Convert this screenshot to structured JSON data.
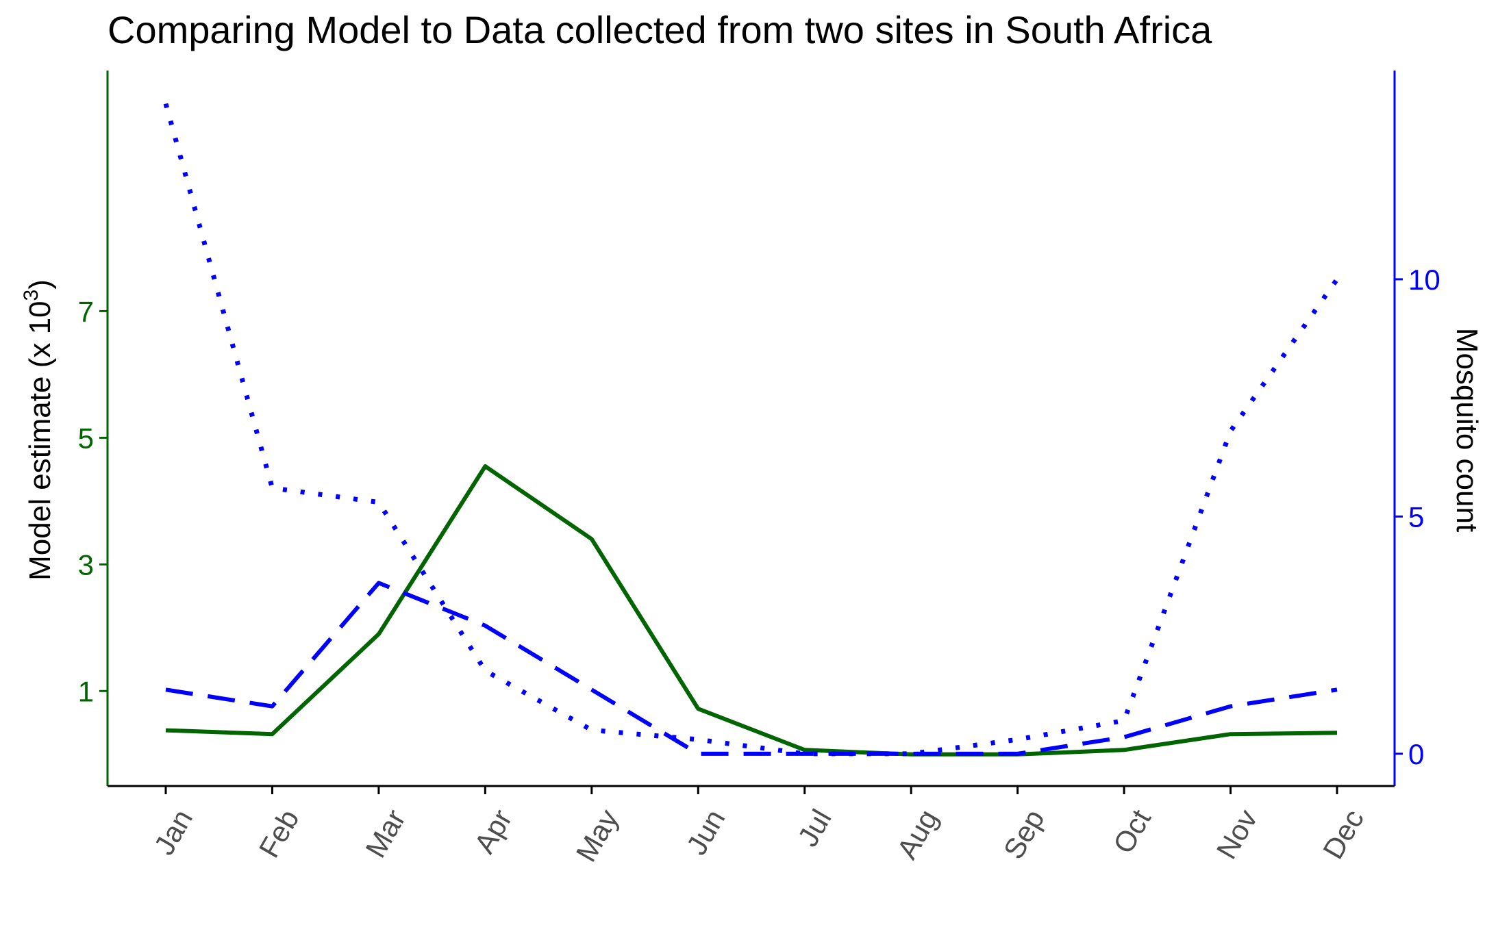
{
  "chart_data": {
    "type": "line",
    "title": "Comparing Model to Data collected from two sites in South Africa",
    "categories": [
      "Jan",
      "Feb",
      "Mar",
      "Apr",
      "May",
      "Jun",
      "Jul",
      "Aug",
      "Sep",
      "Oct",
      "Nov",
      "Dec"
    ],
    "left_axis": {
      "label_prefix": "Model estimate (x 10",
      "label_superscript": "3",
      "label_suffix": ")",
      "ticks": [
        1,
        3,
        5,
        7
      ],
      "range": [
        -0.5,
        10.8
      ],
      "color": "#006400"
    },
    "right_axis": {
      "label": "Mosquito count",
      "ticks": [
        0,
        5,
        10
      ],
      "range": [
        -0.68,
        14.4
      ],
      "color": "#0000ff"
    },
    "series": [
      {
        "axis": "left",
        "style": "solid",
        "color": "#006400",
        "values": [
          0.38,
          0.32,
          1.9,
          4.55,
          3.4,
          0.72,
          0.07,
          0.0,
          0.0,
          0.07,
          0.32,
          0.34
        ]
      },
      {
        "axis": "right",
        "style": "dashed",
        "color": "#0000ff",
        "values": [
          1.35,
          1.0,
          3.6,
          2.7,
          1.35,
          0.0,
          0.0,
          0.0,
          0.0,
          0.35,
          1.0,
          1.35
        ]
      },
      {
        "axis": "right",
        "style": "dotted",
        "color": "#0000ff",
        "values": [
          13.7,
          5.6,
          5.3,
          1.75,
          0.5,
          0.3,
          0.0,
          0.0,
          0.3,
          0.7,
          6.8,
          10.0
        ]
      }
    ],
    "grid": false,
    "legend": "none"
  }
}
